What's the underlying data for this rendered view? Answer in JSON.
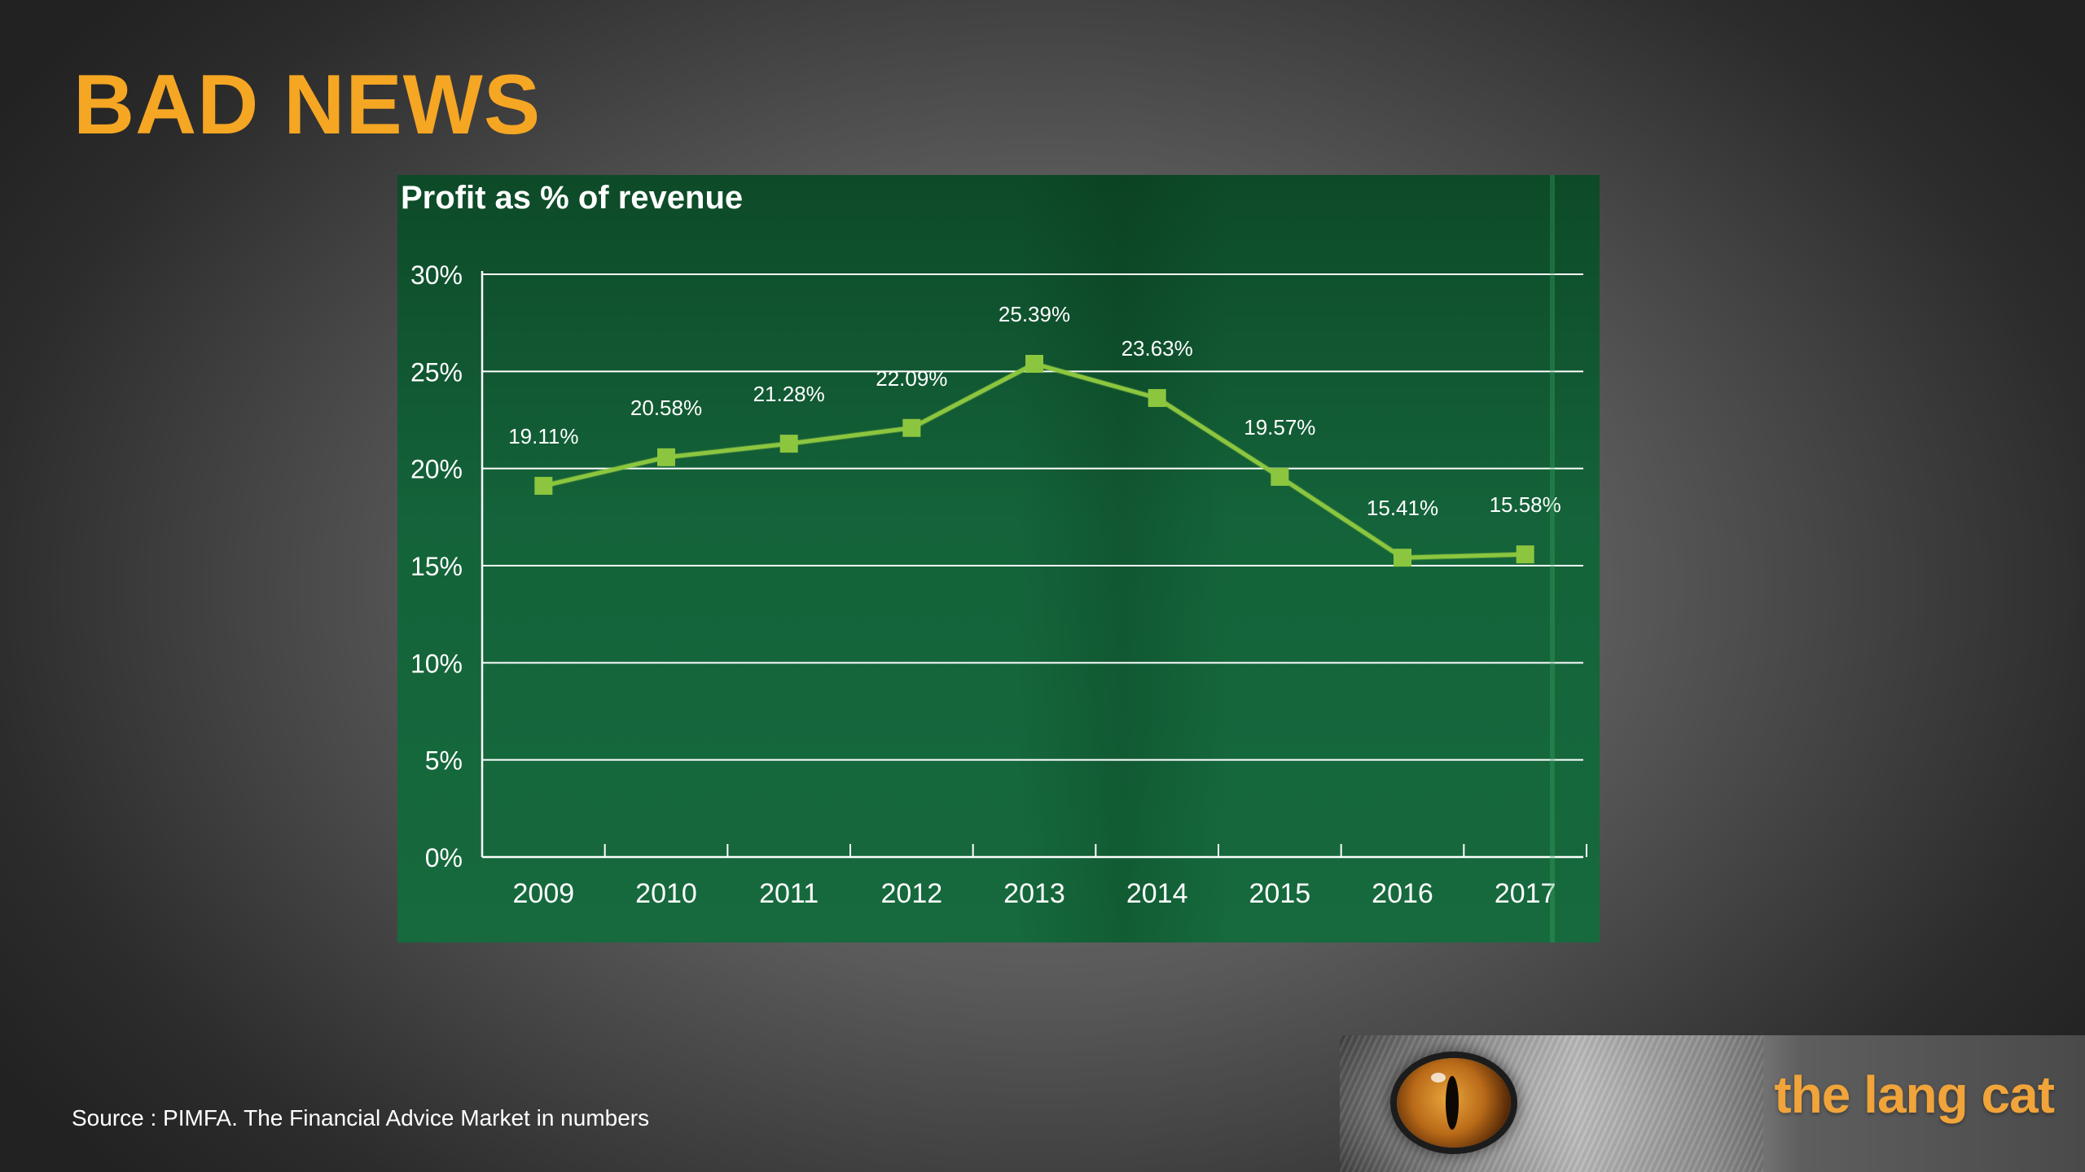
{
  "slide": {
    "title": "BAD NEWS",
    "source": "Source : PIMFA. The Financial Advice Market in numbers"
  },
  "logo": {
    "text": "the lang cat"
  },
  "colors": {
    "title": "#f5a623",
    "line": "#8cc63f",
    "panel": "#14633a",
    "logo_text": "#f0a43a"
  },
  "chart_data": {
    "type": "line",
    "title": "Profit as % of revenue",
    "xlabel": "",
    "ylabel": "",
    "categories": [
      "2009",
      "2010",
      "2011",
      "2012",
      "2013",
      "2014",
      "2015",
      "2016",
      "2017"
    ],
    "series": [
      {
        "values": [
          19.11,
          20.58,
          21.28,
          22.09,
          25.39,
          23.63,
          19.57,
          15.41,
          15.58
        ],
        "labels": [
          "19.11%",
          "20.58%",
          "21.28%",
          "22.09%",
          "25.39%",
          "23.63%",
          "19.57%",
          "15.41%",
          "15.58%"
        ]
      }
    ],
    "ylim": [
      0,
      30
    ],
    "yticks": [
      0,
      5,
      10,
      15,
      20,
      25,
      30
    ],
    "ytick_labels": [
      "0%",
      "5%",
      "10%",
      "15%",
      "20%",
      "25%",
      "30%"
    ],
    "grid": true,
    "legend": "none"
  }
}
